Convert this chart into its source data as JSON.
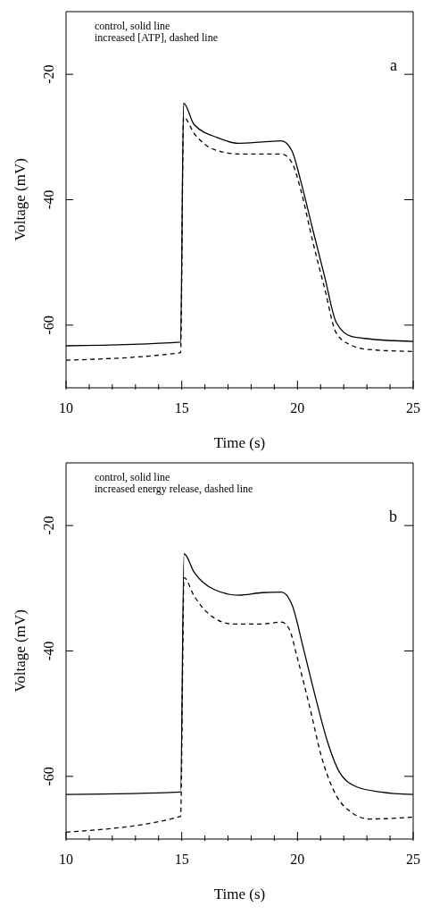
{
  "chart_data": [
    {
      "type": "line",
      "xlabel": "Time (s)",
      "ylabel": "Voltage (mV)",
      "annotations": [
        "control, solid line",
        "increased [ATP], dashed line",
        "a"
      ],
      "xlim": [
        10,
        25
      ],
      "ylim": [
        -70,
        -10
      ],
      "xticks": [
        10,
        {
          "value": 11,
          "label": null
        },
        {
          "value": 12,
          "label": null
        },
        {
          "value": 13,
          "label": null
        },
        {
          "value": 14,
          "label": null
        },
        15,
        {
          "value": 16,
          "label": null
        },
        {
          "value": 17,
          "label": null
        },
        {
          "value": 18,
          "label": null
        },
        {
          "value": 19,
          "label": null
        },
        20,
        {
          "value": 21,
          "label": null
        },
        {
          "value": 22,
          "label": null
        },
        {
          "value": 23,
          "label": null
        },
        {
          "value": 24,
          "label": null
        },
        25
      ],
      "yticks": [
        -60,
        -40,
        -20
      ],
      "grid": false,
      "legend": false,
      "marker": "none",
      "series": [
        {
          "color": "#000000",
          "line_style": "solid",
          "x": [
            10,
            14.95,
            15.08,
            15.53,
            16.55,
            17.45,
            18.47,
            19.31,
            19.76,
            20.14,
            20.65,
            21.17,
            21.68,
            22.32,
            23.09,
            25
          ],
          "values": [
            -63.3,
            -62.7,
            -24.6,
            -28.0,
            -30.1,
            -31.0,
            -30.8,
            -30.6,
            -32.2,
            -37.0,
            -44.6,
            -52.2,
            -59.6,
            -61.8,
            -62.2,
            -62.6
          ]
        },
        {
          "color": "#000000",
          "line_style": "dashed",
          "x": [
            10,
            14.95,
            15.08,
            15.53,
            16.4,
            17.45,
            18.47,
            19.31,
            19.76,
            20.14,
            20.65,
            21.17,
            21.68,
            22.32,
            23.09,
            25
          ],
          "values": [
            -65.6,
            -64.4,
            -26.8,
            -29.4,
            -32.0,
            -32.7,
            -32.7,
            -32.7,
            -34.1,
            -38.4,
            -46.5,
            -54.1,
            -61.3,
            -63.2,
            -63.9,
            -64.2
          ]
        }
      ]
    },
    {
      "type": "line",
      "xlabel": "Time (s)",
      "ylabel": "Voltage (mV)",
      "annotations": [
        "control, solid line",
        "increased energy release, dashed line",
        "b"
      ],
      "xlim": [
        10,
        25
      ],
      "ylim": [
        -70,
        -10
      ],
      "xticks": [
        10,
        {
          "value": 11,
          "label": null
        },
        {
          "value": 12,
          "label": null
        },
        {
          "value": 13,
          "label": null
        },
        {
          "value": 14,
          "label": null
        },
        15,
        {
          "value": 16,
          "label": null
        },
        {
          "value": 17,
          "label": null
        },
        {
          "value": 18,
          "label": null
        },
        {
          "value": 19,
          "label": null
        },
        20,
        {
          "value": 21,
          "label": null
        },
        {
          "value": 22,
          "label": null
        },
        {
          "value": 23,
          "label": null
        },
        {
          "value": 24,
          "label": null
        },
        25
      ],
      "yticks": [
        -60,
        -40,
        -20
      ],
      "grid": false,
      "legend": false,
      "marker": "none",
      "series": [
        {
          "color": "#000000",
          "line_style": "solid",
          "x": [
            10,
            14.95,
            15.1,
            15.53,
            16.4,
            17.45,
            18.47,
            19.31,
            19.76,
            20.27,
            20.78,
            21.3,
            21.81,
            22.58,
            23.6,
            25
          ],
          "values": [
            -62.9,
            -62.5,
            -24.5,
            -27.4,
            -30.2,
            -31.1,
            -30.7,
            -30.6,
            -32.6,
            -39.8,
            -47.4,
            -54.5,
            -59.3,
            -61.7,
            -62.5,
            -62.9
          ]
        },
        {
          "color": "#000000",
          "line_style": "dashed",
          "x": [
            10,
            14.95,
            15.1,
            15.53,
            16.14,
            17.2,
            18.47,
            19.31,
            19.63,
            20.0,
            20.52,
            21.04,
            21.68,
            22.32,
            23.09,
            25
          ],
          "values": [
            -68.9,
            -66.4,
            -28.3,
            -31.2,
            -34.0,
            -35.7,
            -35.7,
            -35.4,
            -36.4,
            -41.2,
            -48.8,
            -56.9,
            -63.1,
            -65.7,
            -66.8,
            -66.5
          ]
        }
      ]
    }
  ]
}
